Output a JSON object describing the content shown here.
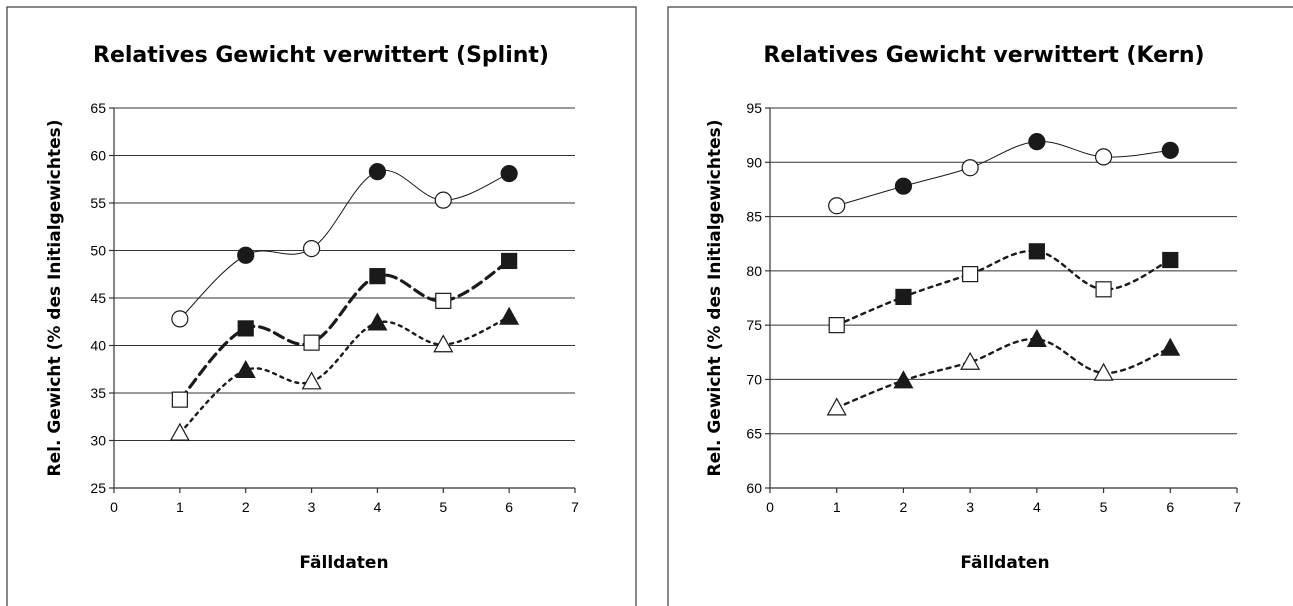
{
  "chart_data": [
    {
      "type": "line",
      "title": "Relatives Gewicht verwittert (Splint)",
      "xlabel": "Fälldaten",
      "ylabel": "Rel. Gewicht (% des Initialgewichtes)",
      "xlim": [
        0,
        7
      ],
      "ylim": [
        25,
        65
      ],
      "xticks": [
        "0",
        "1",
        "2",
        "3",
        "4",
        "5",
        "6",
        "7"
      ],
      "yticks": [
        "25",
        "30",
        "35",
        "40",
        "45",
        "50",
        "55",
        "60",
        "65"
      ],
      "grid": "horizontal",
      "series": [
        {
          "style": "thin-solid",
          "x": [
            1,
            2,
            3,
            4,
            5,
            6
          ],
          "y": [
            42.8,
            49.5,
            50.2,
            58.3,
            55.3,
            58.1
          ],
          "markers": [
            "circle-open",
            "circle-filled",
            "circle-open",
            "circle-filled",
            "circle-open",
            "circle-filled"
          ]
        },
        {
          "style": "thick-dash",
          "x": [
            1,
            2,
            3,
            4,
            5,
            6
          ],
          "y": [
            34.3,
            41.8,
            40.3,
            47.3,
            44.7,
            48.9
          ],
          "markers": [
            "square-open",
            "square-filled",
            "square-open",
            "square-filled",
            "square-open",
            "square-filled"
          ]
        },
        {
          "style": "dotted",
          "x": [
            1,
            2,
            3,
            4,
            5,
            6
          ],
          "y": [
            30.8,
            37.4,
            36.2,
            42.4,
            40.1,
            43.0
          ],
          "markers": [
            "triangle-open",
            "triangle-filled",
            "triangle-open",
            "triangle-filled",
            "triangle-open",
            "triangle-filled"
          ]
        }
      ]
    },
    {
      "type": "line",
      "title": "Relatives Gewicht verwittert (Kern)",
      "xlabel": "Fälldaten",
      "ylabel": "Rel. Gewicht (% des Initialgewichtes)",
      "xlim": [
        0,
        7
      ],
      "ylim": [
        60,
        95
      ],
      "xticks": [
        "0",
        "1",
        "2",
        "3",
        "4",
        "5",
        "6",
        "7"
      ],
      "yticks": [
        "60",
        "65",
        "70",
        "75",
        "80",
        "85",
        "90",
        "95"
      ],
      "grid": "horizontal",
      "series": [
        {
          "style": "thin-solid",
          "x": [
            1,
            2,
            3,
            4,
            5,
            6
          ],
          "y": [
            86.0,
            87.8,
            89.5,
            91.9,
            90.5,
            91.1
          ],
          "markers": [
            "circle-open",
            "circle-filled",
            "circle-open",
            "circle-filled",
            "circle-open",
            "circle-filled"
          ]
        },
        {
          "style": "dotted-dash",
          "x": [
            1,
            2,
            3,
            4,
            5,
            6
          ],
          "y": [
            75.0,
            77.6,
            79.7,
            81.8,
            78.3,
            81.0
          ],
          "markers": [
            "square-open",
            "square-filled",
            "square-open",
            "square-filled",
            "square-open",
            "square-filled"
          ]
        },
        {
          "style": "dotted-dash",
          "x": [
            1,
            2,
            3,
            4,
            5,
            6
          ],
          "y": [
            67.4,
            69.9,
            71.6,
            73.7,
            70.6,
            72.9
          ],
          "markers": [
            "triangle-open",
            "triangle-filled",
            "triangle-open",
            "triangle-filled",
            "triangle-open",
            "triangle-filled"
          ]
        }
      ]
    }
  ]
}
